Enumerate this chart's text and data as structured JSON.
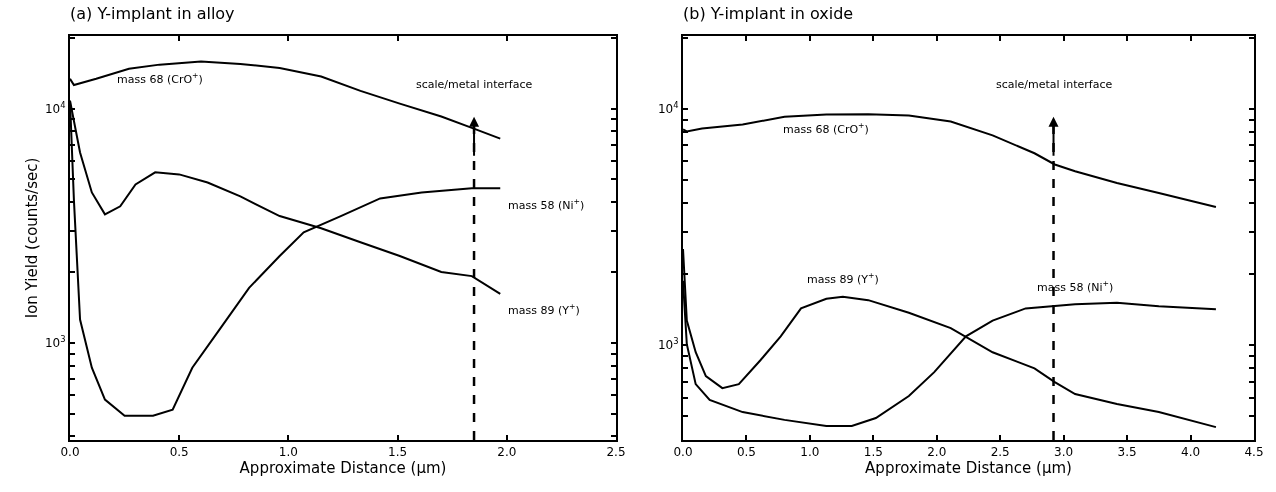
{
  "chart_data": [
    {
      "type": "line",
      "title": "(a) Y-implant in alloy",
      "xlabel": "Approximate Distance (µm)",
      "ylabel": "Ion Yield (counts/sec)",
      "log": "y",
      "grid": false,
      "legend": false,
      "marker": "none",
      "line_style": "solid",
      "xlim": [
        0,
        2.5
      ],
      "xticks": [
        {
          "value": 0,
          "label": "0.0"
        },
        {
          "value": 0.5,
          "label": "0.5"
        },
        {
          "value": 1,
          "label": "1.0"
        },
        {
          "value": 1.5,
          "label": "1.5"
        },
        {
          "value": 2,
          "label": "2.0"
        },
        {
          "value": 2.5,
          "label": "2.5"
        }
      ],
      "ylim": [
        386,
        20400
      ],
      "yticks": [
        {
          "value": 400,
          "label": null
        },
        {
          "value": 500,
          "label": null
        },
        {
          "value": 600,
          "label": null
        },
        {
          "value": 700,
          "label": null
        },
        {
          "value": 800,
          "label": null
        },
        {
          "value": 900,
          "label": null
        },
        {
          "value": 1000,
          "label": "10$^{3}$"
        },
        {
          "value": 2000,
          "label": null
        },
        {
          "value": 3000,
          "label": null
        },
        {
          "value": 4000,
          "label": null
        },
        {
          "value": 5000,
          "label": null
        },
        {
          "value": 6000,
          "label": null
        },
        {
          "value": 7000,
          "label": null
        },
        {
          "value": 8000,
          "label": null
        },
        {
          "value": 9000,
          "label": null
        },
        {
          "value": 10000,
          "label": "10$^{4}$"
        },
        {
          "value": 20000,
          "label": null
        }
      ],
      "ref_lines": [
        {
          "axis": "x",
          "value": 1.85,
          "label": "scale/metal interface",
          "color": "#000000",
          "line_style": "dashed"
        }
      ],
      "series": [
        {
          "name": "mass 68 (CrO$^{+}$)",
          "color": "#000000",
          "x": [
            0,
            0.018,
            0.12,
            0.27,
            0.41,
            0.6,
            0.78,
            0.96,
            1.15,
            1.33,
            1.51,
            1.7,
            1.84,
            1.97
          ],
          "values": [
            13400,
            12600,
            13400,
            14800,
            15400,
            15900,
            15500,
            14900,
            13700,
            11900,
            10500,
            9250,
            8280,
            7450
          ]
        },
        {
          "name": "mass 58 (Ni$^{+}$)",
          "color": "#000000",
          "x": [
            0,
            0.018,
            0.046,
            0.1,
            0.16,
            0.25,
            0.38,
            0.47,
            0.56,
            0.69,
            0.82,
            0.96,
            1.07,
            1.24,
            1.42,
            1.61,
            1.84,
            1.97
          ],
          "values": [
            10800,
            4060,
            1260,
            785,
            574,
            490,
            490,
            520,
            785,
            1160,
            1720,
            2350,
            2970,
            3480,
            4140,
            4390,
            4570,
            4570
          ]
        },
        {
          "name": "mass 89 (Y$^{+}$)",
          "color": "#000000",
          "x": [
            0,
            0.046,
            0.1,
            0.16,
            0.23,
            0.3,
            0.39,
            0.5,
            0.63,
            0.78,
            0.96,
            1.15,
            1.33,
            1.51,
            1.7,
            1.84,
            1.97
          ],
          "values": [
            10800,
            6500,
            4390,
            3540,
            3830,
            4750,
            5350,
            5240,
            4840,
            4220,
            3480,
            3090,
            2690,
            2350,
            2010,
            1930,
            1620
          ]
        }
      ]
    },
    {
      "type": "line",
      "title": "(b) Y-implant in oxide",
      "xlabel": "Approximate Distance (µm)",
      "log": "y",
      "grid": false,
      "legend": false,
      "marker": "none",
      "line_style": "solid",
      "xlim": [
        0,
        4.5
      ],
      "xticks": [
        {
          "value": 0,
          "label": "0.0"
        },
        {
          "value": 0.5,
          "label": "0.5"
        },
        {
          "value": 1,
          "label": "1.0"
        },
        {
          "value": 1.5,
          "label": "1.5"
        },
        {
          "value": 2,
          "label": "2.0"
        },
        {
          "value": 2.5,
          "label": "2.5"
        },
        {
          "value": 3,
          "label": "3.0"
        },
        {
          "value": 3.5,
          "label": "3.5"
        },
        {
          "value": 4,
          "label": "4.0"
        },
        {
          "value": 4.5,
          "label": "4.5"
        }
      ],
      "ylim": [
        397,
        20300
      ],
      "yticks": [
        {
          "value": 500,
          "label": null
        },
        {
          "value": 600,
          "label": null
        },
        {
          "value": 700,
          "label": null
        },
        {
          "value": 800,
          "label": null
        },
        {
          "value": 900,
          "label": null
        },
        {
          "value": 1000,
          "label": "10$^{3}$"
        },
        {
          "value": 2000,
          "label": null
        },
        {
          "value": 3000,
          "label": null
        },
        {
          "value": 4000,
          "label": null
        },
        {
          "value": 5000,
          "label": null
        },
        {
          "value": 6000,
          "label": null
        },
        {
          "value": 7000,
          "label": null
        },
        {
          "value": 8000,
          "label": null
        },
        {
          "value": 9000,
          "label": null
        },
        {
          "value": 10000,
          "label": "10$^{4}$"
        },
        {
          "value": 20000,
          "label": null
        }
      ],
      "ref_lines": [
        {
          "axis": "x",
          "value": 2.92,
          "label": "scale/metal interface",
          "color": "#000000",
          "line_style": "dashed"
        }
      ],
      "series": [
        {
          "name": "mass 68 (CrO$^{+}$)",
          "color": "#000000",
          "x": [
            0,
            0.03,
            0.15,
            0.47,
            0.8,
            1.13,
            1.46,
            1.78,
            2.11,
            2.44,
            2.77,
            2.93,
            3.09,
            3.42,
            3.75,
            4.2
          ],
          "values": [
            8170,
            8010,
            8240,
            8570,
            9250,
            9440,
            9470,
            9360,
            8830,
            7710,
            6480,
            5810,
            5440,
            4850,
            4400,
            3840
          ]
        },
        {
          "name": "mass 89 (Y$^{+}$)",
          "color": "#000000",
          "x": [
            0,
            0.03,
            0.1,
            0.18,
            0.31,
            0.44,
            0.61,
            0.77,
            0.93,
            1.13,
            1.26,
            1.46,
            1.78,
            2.11,
            2.44,
            2.77,
            2.93,
            3.09,
            3.42,
            3.75,
            4.2
          ],
          "values": [
            2550,
            1270,
            933,
            740,
            658,
            684,
            863,
            1090,
            1430,
            1570,
            1600,
            1550,
            1370,
            1180,
            933,
            798,
            697,
            621,
            564,
            521,
            450
          ]
        },
        {
          "name": "mass 58 (Ni$^{+}$)",
          "color": "#000000",
          "x": [
            0,
            0.03,
            0.1,
            0.21,
            0.47,
            0.8,
            1.13,
            1.33,
            1.52,
            1.78,
            1.98,
            2.23,
            2.44,
            2.7,
            3.09,
            3.42,
            3.75,
            4.2
          ],
          "values": [
            1870,
            1010,
            684,
            586,
            521,
            483,
            455,
            455,
            492,
            609,
            769,
            1090,
            1270,
            1430,
            1490,
            1510,
            1460,
            1420
          ]
        }
      ]
    }
  ]
}
